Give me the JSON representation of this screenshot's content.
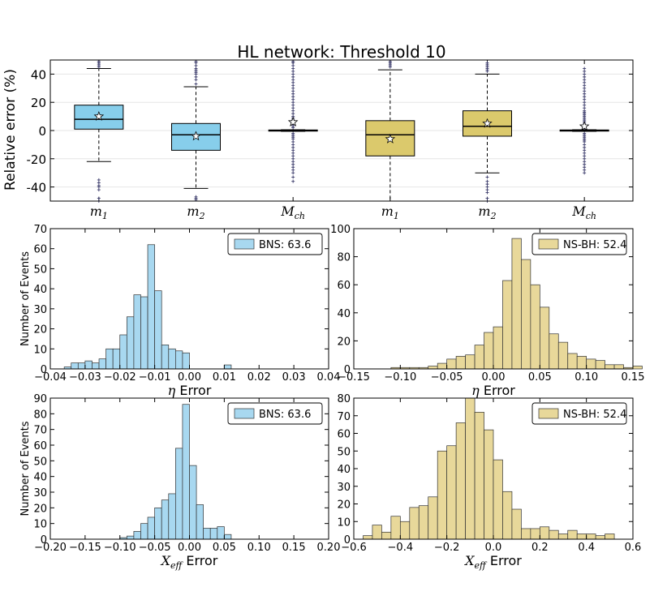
{
  "chart_data": [
    {
      "type": "box",
      "title": "HL network: Threshold 10",
      "ylabel": "Relative error (%)",
      "ylim": [
        -50,
        50
      ],
      "yticks": [
        -40,
        -20,
        0,
        20,
        40
      ],
      "colors": {
        "bns": "#87ceeb",
        "nsbh": "#dbc96c"
      },
      "boxes": [
        {
          "label": "m",
          "sub": "1",
          "group": "bns",
          "q1": 1,
          "median": 8,
          "q3": 18,
          "whislo": -22,
          "whishi": 44,
          "mean": 10,
          "fliers": [
            45,
            46,
            47,
            48,
            49,
            -35,
            -37,
            -39,
            -40,
            -42,
            -48,
            -50
          ]
        },
        {
          "label": "m",
          "sub": "2",
          "group": "bns",
          "q1": -14,
          "median": -3,
          "q3": 5,
          "whislo": -41,
          "whishi": 31,
          "mean": -4,
          "fliers": [
            33,
            36,
            38,
            40,
            41,
            42,
            43,
            44,
            46,
            48,
            49,
            -47,
            -48,
            -49
          ]
        },
        {
          "label": "M",
          "sub": "ch",
          "group": "bns",
          "q1": -0.4,
          "median": 0,
          "q3": 0.4,
          "whislo": -0.6,
          "whishi": 0.6,
          "mean": 6,
          "fliers": [
            2,
            3,
            4,
            5,
            6,
            7,
            8,
            9,
            10,
            12,
            14,
            16,
            18,
            20,
            22,
            24,
            26,
            28,
            30,
            32,
            34,
            36,
            38,
            40,
            42,
            44,
            46,
            48,
            49,
            -2,
            -3,
            -4,
            -5,
            -6,
            -8,
            -10,
            -12,
            -14,
            -16,
            -18,
            -20,
            -22,
            -24,
            -26,
            -28,
            -30,
            -33,
            -36
          ]
        },
        {
          "label": "m",
          "sub": "1",
          "group": "nsbh",
          "q1": -18,
          "median": -3,
          "q3": 7,
          "whislo": -50,
          "whishi": 43,
          "mean": -6,
          "fliers": [
            45,
            46,
            47,
            48,
            49
          ]
        },
        {
          "label": "m",
          "sub": "2",
          "group": "nsbh",
          "q1": -4,
          "median": 3,
          "q3": 14,
          "whislo": -30,
          "whishi": 40,
          "mean": 5,
          "fliers": [
            42,
            43,
            44,
            45,
            46,
            47,
            48,
            -33,
            -36,
            -38,
            -40,
            -42,
            -44,
            -48,
            -50
          ]
        },
        {
          "label": "M",
          "sub": "ch",
          "group": "nsbh",
          "q1": -0.4,
          "median": 0,
          "q3": 0.4,
          "whislo": -0.6,
          "whishi": 0.6,
          "mean": 3,
          "fliers": [
            2,
            3,
            4,
            5,
            6,
            7,
            8,
            9,
            10,
            11,
            12,
            13,
            14,
            16,
            18,
            20,
            22,
            24,
            26,
            28,
            30,
            32,
            34,
            36,
            38,
            40,
            42,
            44,
            -2,
            -3,
            -4,
            -5,
            -6,
            -7,
            -8,
            -10,
            -12,
            -14,
            -16,
            -18,
            -20,
            -22,
            -24,
            -26,
            -28,
            -30
          ]
        }
      ]
    },
    {
      "type": "histogram",
      "panel": "eta-bns",
      "legend": "BNS: 63.6",
      "xlabel_sym": "η",
      "xlabel_text": " Error",
      "ylabel": "Number of Events",
      "color": "#a8d8f0",
      "xlim": [
        -0.04,
        0.04
      ],
      "ylim": [
        0,
        70
      ],
      "xticks": [
        -0.04,
        -0.03,
        -0.02,
        -0.01,
        0.0,
        0.01,
        0.02,
        0.03,
        0.04
      ],
      "xtick_labels": [
        "−0.04",
        "−0.03",
        "−0.02",
        "−0.01",
        "0.00",
        "0.01",
        "0.02",
        "0.03",
        "0.04"
      ],
      "yticks": [
        0,
        10,
        20,
        30,
        40,
        50,
        60,
        70
      ],
      "bin_start": -0.036,
      "bin_width": 0.002,
      "counts": [
        1,
        3,
        3,
        4,
        3,
        5,
        10,
        10,
        17,
        26,
        37,
        36,
        62,
        39,
        12,
        10,
        9,
        8,
        0,
        0,
        0,
        0,
        0,
        2
      ]
    },
    {
      "type": "histogram",
      "panel": "eta-nsbh",
      "legend": "NS-BH: 52.4",
      "xlabel_sym": "η",
      "xlabel_text": " Error",
      "ylabel": "",
      "color": "#e8d89a",
      "xlim": [
        -0.15,
        0.15
      ],
      "ylim": [
        0,
        100
      ],
      "xticks": [
        -0.15,
        -0.1,
        -0.05,
        0.0,
        0.05,
        0.1,
        0.15
      ],
      "xtick_labels": [
        "−0.15",
        "−0.10",
        "−0.05",
        "0.00",
        "0.05",
        "0.10",
        "0.15"
      ],
      "yticks": [
        0,
        20,
        40,
        60,
        80,
        100
      ],
      "bin_start": -0.11,
      "bin_width": 0.01,
      "counts": [
        1,
        1,
        1,
        1,
        2,
        4,
        7,
        9,
        10,
        17,
        26,
        30,
        63,
        93,
        78,
        60,
        44,
        25,
        19,
        11,
        9,
        7,
        6,
        3,
        3,
        1,
        2
      ]
    },
    {
      "type": "histogram",
      "panel": "xeff-bns",
      "legend": "BNS: 63.6",
      "xlabel_sym": "X",
      "xlabel_sub": "eff",
      "xlabel_text": " Error",
      "ylabel": "Number of Events",
      "color": "#a8d8f0",
      "xlim": [
        -0.2,
        0.2
      ],
      "ylim": [
        0,
        90
      ],
      "xticks": [
        -0.2,
        -0.15,
        -0.1,
        -0.05,
        0.0,
        0.05,
        0.1,
        0.15,
        0.2
      ],
      "xtick_labels": [
        "−0.20",
        "−0.15",
        "−0.10",
        "−0.05",
        "0.00",
        "0.05",
        "0.10",
        "0.15",
        "0.20"
      ],
      "yticks": [
        0,
        10,
        20,
        30,
        40,
        50,
        60,
        70,
        80,
        90
      ],
      "bin_start": -0.1,
      "bin_width": 0.01,
      "counts": [
        1,
        2,
        5,
        10,
        14,
        20,
        25,
        29,
        58,
        86,
        47,
        22,
        7,
        7,
        8,
        3
      ]
    },
    {
      "type": "histogram",
      "panel": "xeff-nsbh",
      "legend": "NS-BH: 52.4",
      "xlabel_sym": "X",
      "xlabel_sub": "eff",
      "xlabel_text": " Error",
      "ylabel": "",
      "color": "#e8d89a",
      "xlim": [
        -0.6,
        0.6
      ],
      "ylim": [
        0,
        80
      ],
      "xticks": [
        -0.6,
        -0.4,
        -0.2,
        0.0,
        0.2,
        0.4,
        0.6
      ],
      "xtick_labels": [
        "−0.6",
        "−0.4",
        "−0.2",
        "0.0",
        "0.2",
        "0.4",
        "0.6"
      ],
      "yticks": [
        0,
        10,
        20,
        30,
        40,
        50,
        60,
        70,
        80
      ],
      "bin_start": -0.56,
      "bin_width": 0.04,
      "counts": [
        2,
        8,
        4,
        13,
        10,
        18,
        19,
        24,
        50,
        53,
        66,
        80,
        72,
        62,
        45,
        27,
        17,
        6,
        6,
        7,
        5,
        3,
        5,
        3,
        3,
        2,
        3
      ]
    }
  ]
}
